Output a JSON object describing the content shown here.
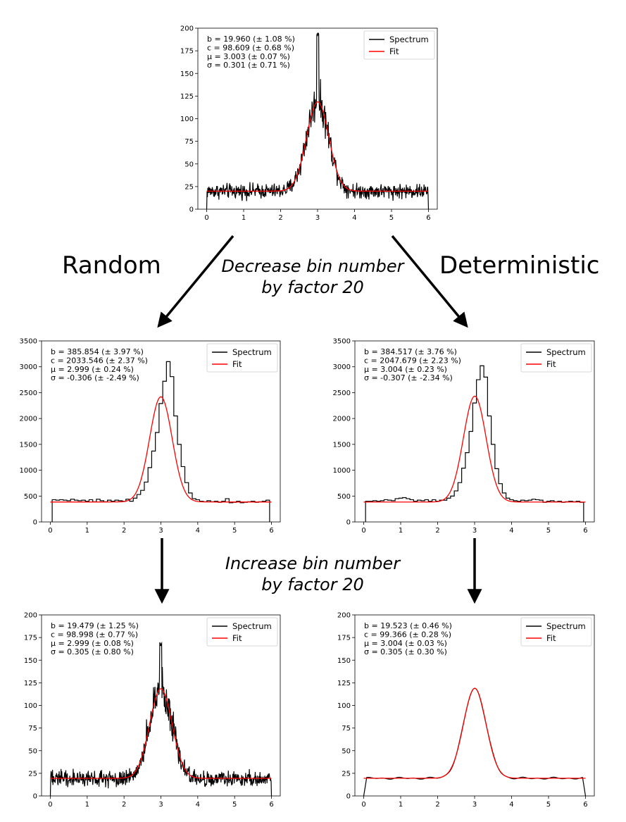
{
  "labels": {
    "left": "Random",
    "right": "Deterministic",
    "decrease_1": "Decrease bin number",
    "decrease_2": "by factor 20",
    "increase_1": "Increase bin number",
    "increase_2": "by factor 20"
  },
  "chart_data": [
    {
      "id": "original",
      "type": "line",
      "style": "noisy",
      "xlim": [
        0,
        6
      ],
      "ylim": [
        0,
        200
      ],
      "xticks": [
        "0",
        "1",
        "2",
        "3",
        "4",
        "5",
        "6"
      ],
      "yticks": [
        "0",
        "25",
        "50",
        "75",
        "100",
        "125",
        "150",
        "175",
        "200"
      ],
      "legend": [
        "Spectrum",
        "Fit"
      ],
      "legend_position": "top-right",
      "annotations": [
        "b = 19.960 (± 1.08 %)",
        "c = 98.609 (± 0.68 %)",
        "μ = 3.003 (± 0.07 %)",
        "σ = 0.301 (± 0.71 %)"
      ],
      "fit": {
        "b": 19.96,
        "c": 98.609,
        "mu": 3.003,
        "sigma": 0.301
      },
      "noise_amplitude": 9,
      "bins": 600,
      "peak_max": 195
    },
    {
      "id": "random-decreased",
      "type": "line",
      "style": "step",
      "xlim": [
        0,
        6
      ],
      "ylim": [
        0,
        3500
      ],
      "xticks": [
        "0",
        "1",
        "2",
        "3",
        "4",
        "5",
        "6"
      ],
      "yticks": [
        "0",
        "500",
        "1000",
        "1500",
        "2000",
        "2500",
        "3000",
        "3500"
      ],
      "legend": [
        "Spectrum",
        "Fit"
      ],
      "legend_position": "top-right",
      "annotations": [
        "b = 385.854 (± 3.97 %)",
        "c = 2033.546 (± 2.37 %)",
        "μ = 2.999 (± 0.24 %)",
        "σ = -0.306 (± -2.49 %)"
      ],
      "fit": {
        "b": 385.854,
        "c": 2033.546,
        "mu": 2.999,
        "sigma": 0.306
      },
      "spectrum_x_start": 0.05,
      "spectrum_bin_width": 0.1,
      "spectrum": [
        430,
        420,
        430,
        420,
        410,
        440,
        420,
        410,
        420,
        400,
        430,
        390,
        440,
        410,
        390,
        420,
        400,
        420,
        410,
        400,
        440,
        400,
        460,
        530,
        610,
        770,
        1050,
        1370,
        1730,
        2290,
        2720,
        3100,
        2810,
        2050,
        1500,
        1070,
        760,
        560,
        450,
        430,
        400,
        390,
        410,
        390,
        400,
        380,
        400,
        450,
        370,
        380,
        400,
        370,
        380,
        390,
        400,
        380,
        390,
        400,
        420,
        360
      ]
    },
    {
      "id": "deterministic-decreased",
      "type": "line",
      "style": "step",
      "xlim": [
        0,
        6
      ],
      "ylim": [
        0,
        3500
      ],
      "xticks": [
        "0",
        "1",
        "2",
        "3",
        "4",
        "5",
        "6"
      ],
      "yticks": [
        "0",
        "500",
        "1000",
        "1500",
        "2000",
        "2500",
        "3000",
        "3500"
      ],
      "legend": [
        "Spectrum",
        "Fit"
      ],
      "legend_position": "top-right",
      "annotations": [
        "b = 384.517 (± 3.76 %)",
        "c = 2047.679 (± 2.23 %)",
        "μ = 3.004 (± 0.23 %)",
        "σ = -0.307 (± -2.34 %)"
      ],
      "fit": {
        "b": 384.517,
        "c": 2047.679,
        "mu": 3.004,
        "sigma": 0.307
      },
      "spectrum_x_start": 0.05,
      "spectrum_bin_width": 0.1,
      "spectrum": [
        400,
        400,
        410,
        400,
        410,
        430,
        420,
        410,
        450,
        460,
        470,
        450,
        430,
        400,
        420,
        410,
        430,
        400,
        430,
        400,
        420,
        420,
        460,
        500,
        600,
        760,
        1040,
        1340,
        1750,
        2300,
        2750,
        3020,
        2800,
        2050,
        1500,
        1030,
        740,
        560,
        460,
        430,
        410,
        400,
        420,
        410,
        420,
        440,
        430,
        420,
        380,
        400,
        410,
        390,
        400,
        380,
        390,
        400,
        390,
        400,
        380,
        360
      ]
    },
    {
      "id": "random-increased",
      "type": "line",
      "style": "noisy",
      "xlim": [
        0,
        6
      ],
      "ylim": [
        0,
        200
      ],
      "xticks": [
        "0",
        "1",
        "2",
        "3",
        "4",
        "5",
        "6"
      ],
      "yticks": [
        "0",
        "25",
        "50",
        "75",
        "100",
        "125",
        "150",
        "175",
        "200"
      ],
      "legend": [
        "Spectrum",
        "Fit"
      ],
      "legend_position": "top-right",
      "annotations": [
        "b = 19.479 (± 1.25 %)",
        "c = 98.998 (± 0.77 %)",
        "μ = 2.999 (± 0.08 %)",
        "σ = 0.305 (± 0.80 %)"
      ],
      "fit": {
        "b": 19.479,
        "c": 98.998,
        "mu": 2.999,
        "sigma": 0.305
      },
      "noise_amplitude": 10,
      "bins": 600,
      "peak_max": 170
    },
    {
      "id": "deterministic-increased",
      "type": "line",
      "style": "smooth",
      "xlim": [
        0,
        6
      ],
      "ylim": [
        0,
        200
      ],
      "xticks": [
        "0",
        "1",
        "2",
        "3",
        "4",
        "5",
        "6"
      ],
      "yticks": [
        "0",
        "25",
        "50",
        "75",
        "100",
        "125",
        "150",
        "175",
        "200"
      ],
      "legend": [
        "Spectrum",
        "Fit"
      ],
      "legend_position": "top-right",
      "annotations": [
        "b = 19.523 (± 0.46 %)",
        "c = 99.366 (± 0.28 %)",
        "μ = 3.004 (± 0.03 %)",
        "σ = 0.305 (± 0.30 %)"
      ],
      "fit": {
        "b": 19.523,
        "c": 99.366,
        "mu": 3.004,
        "sigma": 0.305
      },
      "ripple_amplitude": 1.2,
      "bins": 600
    }
  ],
  "colors": {
    "spectrum": "#000000",
    "fit": "#ff0000",
    "axis": "#000000"
  }
}
